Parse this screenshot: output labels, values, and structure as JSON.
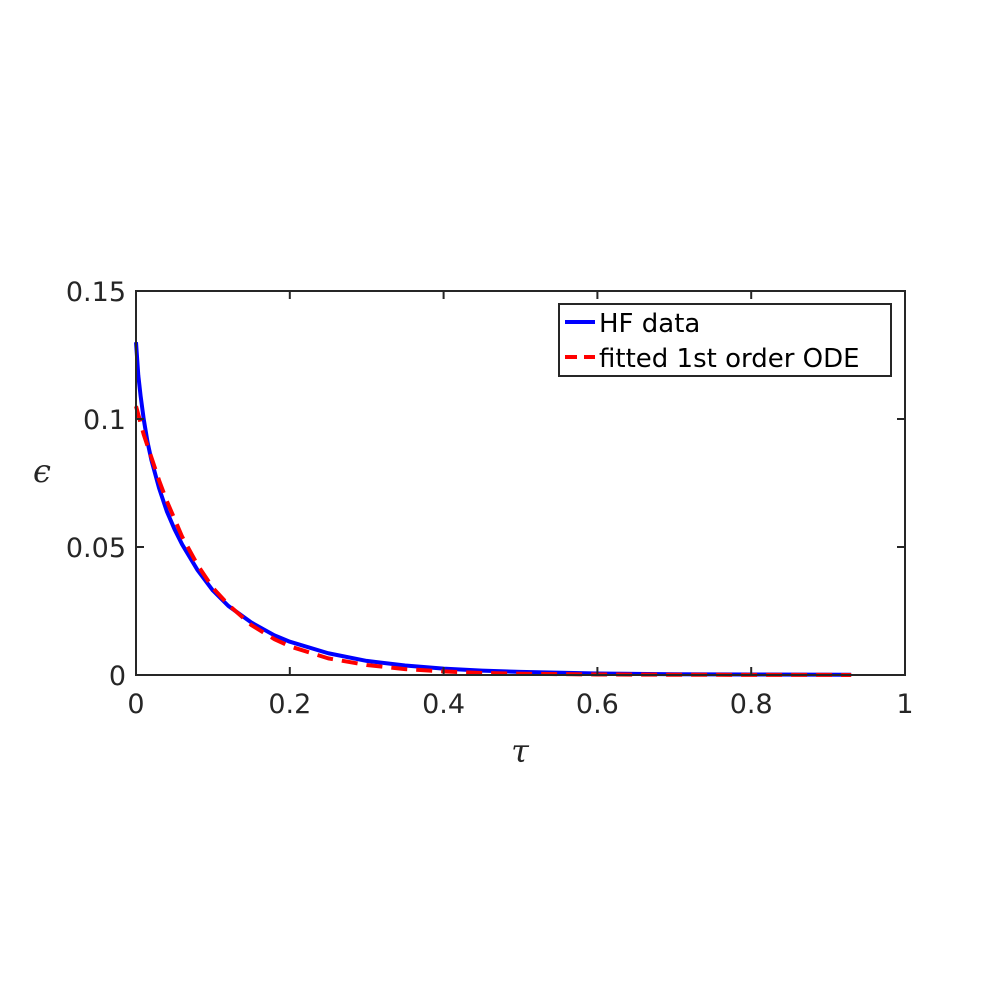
{
  "chart_data": {
    "type": "line",
    "title": "",
    "xlabel": "τ",
    "ylabel": "ϵ",
    "xlim": [
      0,
      1
    ],
    "ylim": [
      0,
      0.15
    ],
    "xticks": [
      0,
      0.2,
      0.4,
      0.6,
      0.8,
      1
    ],
    "xtick_labels": [
      "0",
      "0.2",
      "0.4",
      "0.6",
      "0.8",
      "1"
    ],
    "yticks": [
      0,
      0.05,
      0.1,
      0.15
    ],
    "ytick_labels": [
      "0",
      "0.05",
      "0.1",
      "0.15"
    ],
    "grid": false,
    "legend_position": "top-right",
    "series": [
      {
        "name": "HF data",
        "color": "#0000ff",
        "style": "solid",
        "x": [
          0,
          0.003,
          0.006,
          0.01,
          0.015,
          0.02,
          0.03,
          0.04,
          0.05,
          0.06,
          0.08,
          0.1,
          0.12,
          0.15,
          0.18,
          0.2,
          0.25,
          0.3,
          0.35,
          0.4,
          0.45,
          0.5,
          0.6,
          0.7,
          0.8,
          0.93
        ],
        "y": [
          0.13,
          0.117,
          0.109,
          0.1,
          0.091,
          0.084,
          0.073,
          0.064,
          0.057,
          0.051,
          0.041,
          0.033,
          0.027,
          0.0205,
          0.0155,
          0.013,
          0.0085,
          0.0055,
          0.0037,
          0.0025,
          0.0017,
          0.0012,
          0.0006,
          0.0003,
          0.0002,
          0.0001
        ]
      },
      {
        "name": "fitted 1st order ODE",
        "color": "#ff0000",
        "style": "dashed",
        "x": [
          0,
          0.01,
          0.02,
          0.03,
          0.04,
          0.05,
          0.06,
          0.08,
          0.1,
          0.12,
          0.15,
          0.18,
          0.2,
          0.25,
          0.3,
          0.35,
          0.4,
          0.45,
          0.5,
          0.6,
          0.7,
          0.8,
          0.93
        ],
        "y": [
          0.105,
          0.094,
          0.085,
          0.076,
          0.068,
          0.061,
          0.054,
          0.043,
          0.034,
          0.0275,
          0.0195,
          0.014,
          0.0112,
          0.0065,
          0.0039,
          0.0023,
          0.0014,
          0.0008,
          0.0005,
          0.0002,
          0.0001,
          5e-05,
          2e-05
        ]
      }
    ]
  }
}
